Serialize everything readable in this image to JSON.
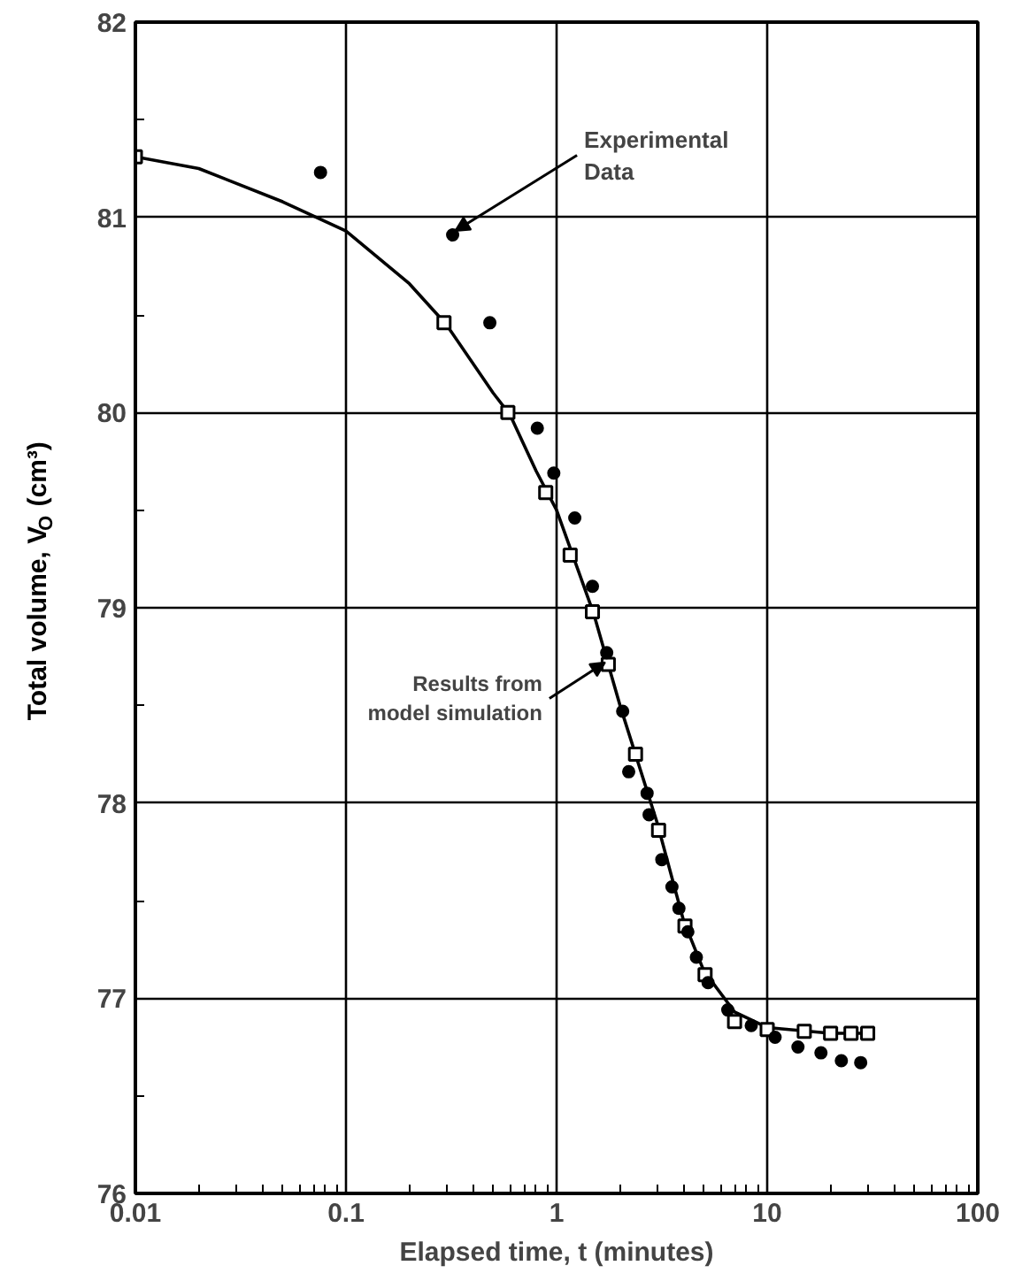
{
  "chart_data": {
    "type": "scatter",
    "xlabel": "Elapsed time, t (minutes)",
    "ylabel": "Total volume, V$_{O}$ (cm³)",
    "log": "x",
    "grid": true,
    "xlim": [
      0.01,
      100
    ],
    "ylim": [
      76,
      82
    ],
    "xticks": [
      0.01,
      {
        "value": 0.02,
        "label": null
      },
      {
        "value": 0.03,
        "label": null
      },
      {
        "value": 0.04,
        "label": null
      },
      {
        "value": 0.05,
        "label": null
      },
      {
        "value": 0.06,
        "label": null
      },
      {
        "value": 0.07,
        "label": null
      },
      {
        "value": 0.08,
        "label": null
      },
      {
        "value": 0.09,
        "label": null
      },
      0.1,
      {
        "value": 0.2,
        "label": null
      },
      {
        "value": 0.3,
        "label": null
      },
      {
        "value": 0.4,
        "label": null
      },
      {
        "value": 0.5,
        "label": null
      },
      {
        "value": 0.6,
        "label": null
      },
      {
        "value": 0.7,
        "label": null
      },
      {
        "value": 0.8,
        "label": null
      },
      {
        "value": 0.9,
        "label": null
      },
      1,
      {
        "value": 2,
        "label": null
      },
      {
        "value": 3,
        "label": null
      },
      {
        "value": 4,
        "label": null
      },
      {
        "value": 5,
        "label": null
      },
      {
        "value": 6,
        "label": null
      },
      {
        "value": 7,
        "label": null
      },
      {
        "value": 8,
        "label": null
      },
      {
        "value": 9,
        "label": null
      },
      10,
      {
        "value": 20,
        "label": null
      },
      {
        "value": 30,
        "label": null
      },
      {
        "value": 40,
        "label": null
      },
      {
        "value": 50,
        "label": null
      },
      {
        "value": 60,
        "label": null
      },
      {
        "value": 70,
        "label": null
      },
      {
        "value": 80,
        "label": null
      },
      {
        "value": 90,
        "label": null
      },
      100
    ],
    "yticks": [
      76,
      {
        "value": 76.5,
        "label": null
      },
      77,
      {
        "value": 77.5,
        "label": null
      },
      78,
      {
        "value": 78.5,
        "label": null
      },
      79,
      {
        "value": 79.5,
        "label": null
      },
      80,
      {
        "value": 80.5,
        "label": null
      },
      81,
      {
        "value": 81.5,
        "label": null
      },
      82
    ],
    "series": [
      {
        "type": "line",
        "color": "#000000",
        "marker": "none",
        "line_style": "solid",
        "x": [
          0.01,
          0.02,
          0.05,
          0.1,
          0.2,
          0.3,
          0.5,
          0.6,
          0.8,
          1,
          1.5,
          2,
          3,
          4,
          5,
          7,
          10,
          20,
          30
        ],
        "values": [
          81.31,
          81.25,
          81.08,
          80.93,
          80.66,
          80.45,
          80.1,
          79.99,
          79.7,
          79.5,
          78.97,
          78.5,
          77.9,
          77.4,
          77.14,
          76.93,
          76.85,
          76.82,
          76.82
        ]
      },
      {
        "color": "#000000",
        "marker": "square",
        "x": [
          0.01,
          0.292,
          0.587,
          0.888,
          1.16,
          1.48,
          1.76,
          2.37,
          3.05,
          4.07,
          5.07,
          7,
          10,
          15,
          20,
          25,
          30
        ],
        "values": [
          81.31,
          80.46,
          80.0,
          79.59,
          79.27,
          78.98,
          78.71,
          78.25,
          77.86,
          77.37,
          77.12,
          76.88,
          76.84,
          76.83,
          76.82,
          76.82,
          76.82
        ]
      },
      {
        "color": "#000000",
        "marker": "circle",
        "x": [
          0.0757,
          0.321,
          0.482,
          0.81,
          0.97,
          1.22,
          1.48,
          1.73,
          2.06,
          2.2,
          2.69,
          2.75,
          3.16,
          3.53,
          3.81,
          4.2,
          4.61,
          5.24,
          6.5,
          8.4,
          10.9,
          14,
          18,
          22.5,
          27.8
        ],
        "values": [
          81.23,
          80.91,
          80.46,
          79.92,
          79.69,
          79.46,
          79.11,
          78.77,
          78.47,
          78.16,
          78.05,
          77.94,
          77.71,
          77.57,
          77.46,
          77.34,
          77.21,
          77.08,
          76.94,
          76.86,
          76.8,
          76.75,
          76.72,
          76.68,
          76.67
        ]
      }
    ],
    "annotations": [
      {
        "text": "Experimental\nData",
        "x": 0.33,
        "y": 80.93
      },
      {
        "text": "Results from\nmodel simulation",
        "x": 1.7,
        "y": 78.72
      }
    ]
  }
}
